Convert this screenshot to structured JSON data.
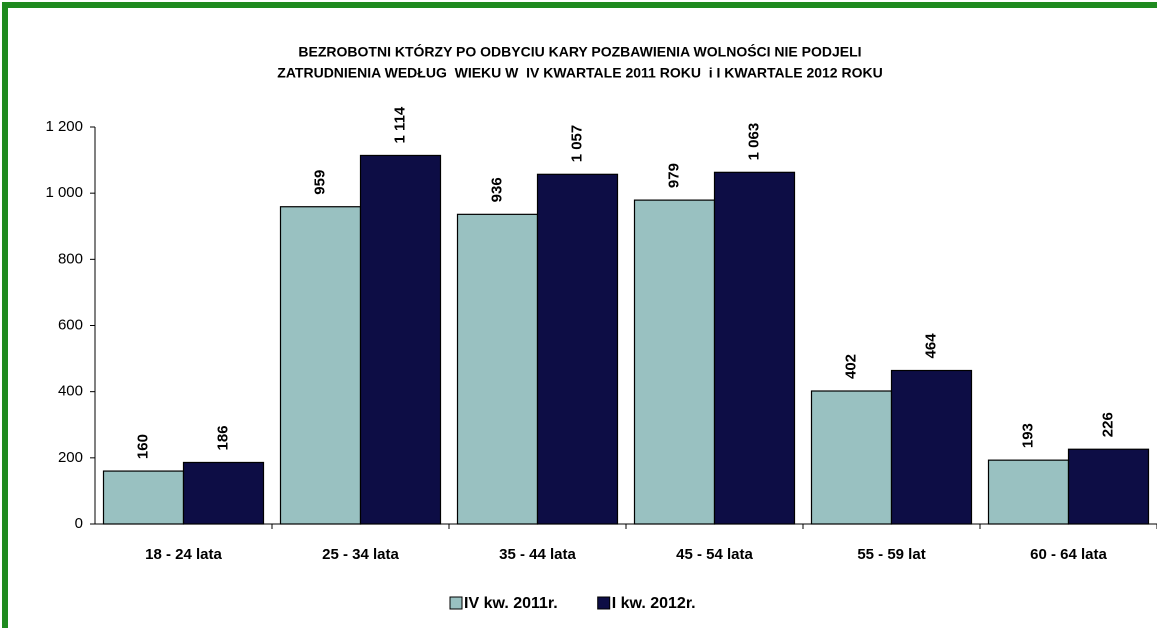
{
  "chart_data": {
    "type": "bar",
    "title": [
      "BEZROBOTNI KTÓRZY PO ODBYCIU KARY POZBAWIENIA WOLNOŚCI NIE PODJELI",
      "ZATRUDNIENIA WEDŁUG  WIEKU W  IV KWARTALE 2011 ROKU  i I KWARTALE 2012 ROKU"
    ],
    "categories": [
      "18 - 24 lata",
      "25 - 34 lata",
      "35 - 44 lata",
      "45 - 54 lata",
      "55 - 59 lat",
      "60 - 64 lata"
    ],
    "series": [
      {
        "name": "IV kw. 2011r.",
        "color": "#99c1c1",
        "values": [
          160,
          959,
          936,
          979,
          402,
          193
        ],
        "value_labels": [
          "160",
          "959",
          "936",
          "979",
          "402",
          "193"
        ]
      },
      {
        "name": "I kw. 2012r.",
        "color": "#0d0d45",
        "values": [
          186,
          1114,
          1057,
          1063,
          464,
          226
        ],
        "value_labels": [
          "186",
          "1 114",
          "1 057",
          "1 063",
          "464",
          "226"
        ]
      }
    ],
    "ylim": [
      0,
      1200
    ],
    "yticks": [
      0,
      200,
      400,
      600,
      800,
      {
        "value": 1000,
        "label": "1 000"
      },
      {
        "value": 1200,
        "label": "1 200"
      }
    ],
    "grid": false,
    "legend": "bottom"
  }
}
